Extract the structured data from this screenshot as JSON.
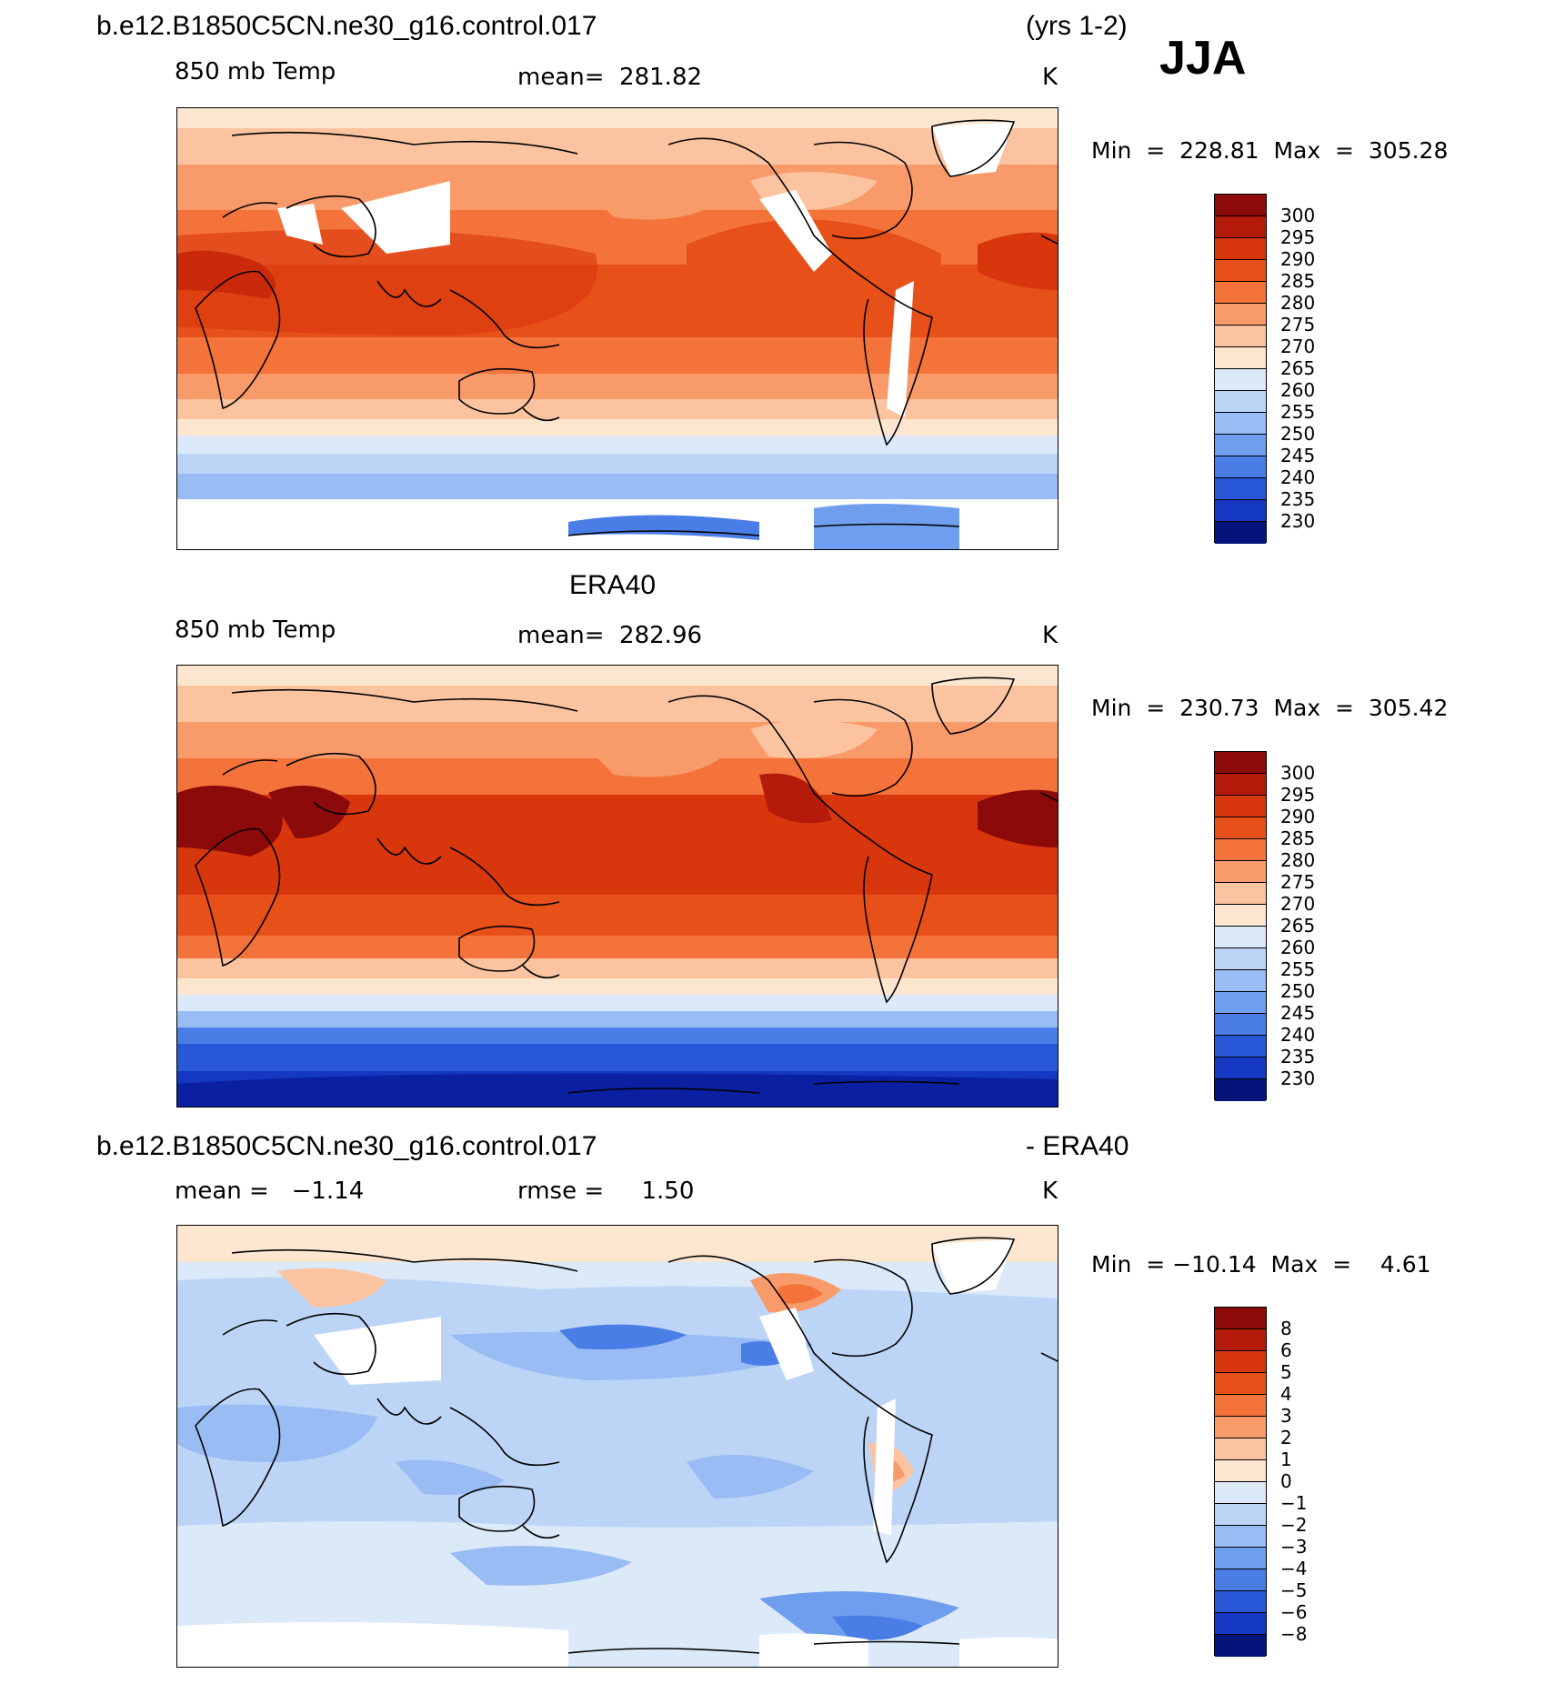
{
  "header": {
    "case_name": "b.e12.B1850C5CN.ne30_g16.control.017",
    "years": "(yrs 1-2)",
    "season": "JJA"
  },
  "panels": [
    {
      "id": "model",
      "title": "",
      "variable": "850 mb Temp",
      "stat_text": "mean=  281.82",
      "units": "K",
      "minmax": "Min  =  228.81  Max  =  305.28",
      "colorbar_labels": [
        "300",
        "295",
        "290",
        "285",
        "280",
        "275",
        "270",
        "265",
        "260",
        "255",
        "250",
        "245",
        "240",
        "235",
        "230"
      ]
    },
    {
      "id": "obs",
      "title": "ERA40",
      "variable": "850 mb Temp",
      "stat_text": "mean=  282.96",
      "units": "K",
      "minmax": "Min  =  230.73  Max  =  305.42",
      "colorbar_labels": [
        "300",
        "295",
        "290",
        "285",
        "280",
        "275",
        "270",
        "265",
        "260",
        "255",
        "250",
        "245",
        "240",
        "235",
        "230"
      ]
    },
    {
      "id": "diff",
      "title_left": "b.e12.B1850C5CN.ne30_g16.control.017",
      "title_right": "- ERA40",
      "stat_left": "mean =   −1.14",
      "stat_mid": "rmse =     1.50",
      "units": "K",
      "minmax": "Min  = −10.14  Max  =    4.61",
      "colorbar_labels": [
        "8",
        "6",
        "5",
        "4",
        "3",
        "2",
        "1",
        "0",
        "−1",
        "−2",
        "−3",
        "−4",
        "−5",
        "−6",
        "−8"
      ]
    }
  ],
  "colors": {
    "temp_scale": [
      "#8c0a0a",
      "#b51b0b",
      "#d8360c",
      "#e8501a",
      "#f4733a",
      "#f99a6a",
      "#fbc3a0",
      "#fde6d0",
      "#dbe9f9",
      "#bcd5f7",
      "#98bcf3",
      "#6f9eef",
      "#4a7de6",
      "#2857d8",
      "#1438c2",
      "#0a20a0",
      "#06137a"
    ],
    "diff_scale": [
      "#8c0a0a",
      "#b51b0b",
      "#d8360c",
      "#e8501a",
      "#f4733a",
      "#f99a6a",
      "#fbc3a0",
      "#fde6d0",
      "#dbe9f9",
      "#bcd5f7",
      "#98bcf3",
      "#6f9eef",
      "#4a7de6",
      "#2857d8",
      "#1438c2",
      "#0a20a0",
      "#06137a"
    ]
  }
}
